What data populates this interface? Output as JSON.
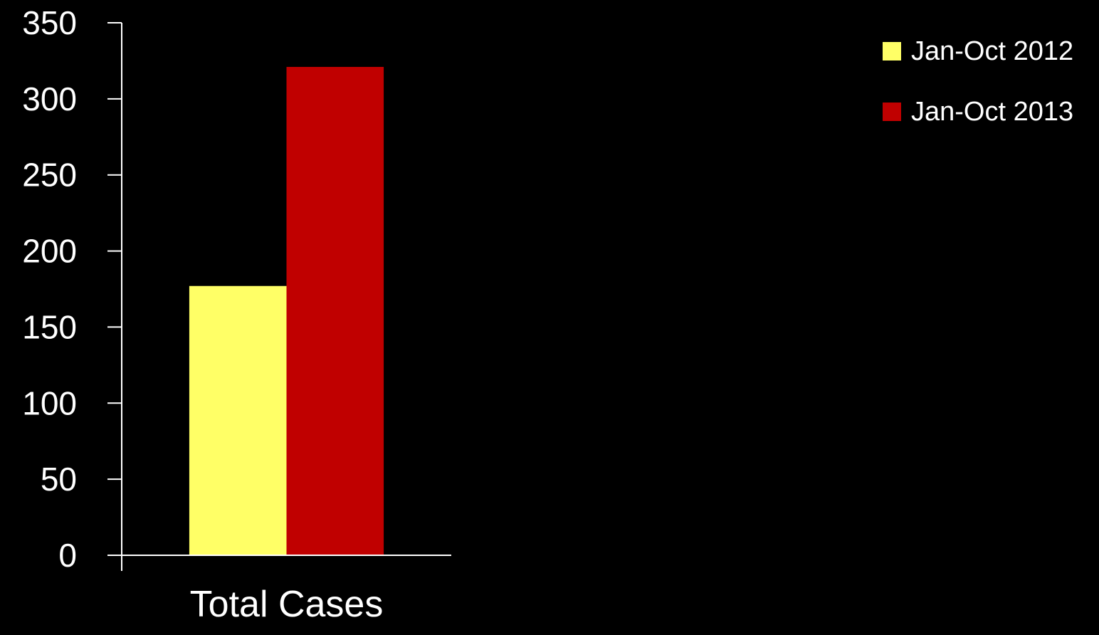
{
  "chart_data": {
    "type": "bar",
    "categories": [
      "Total Cases"
    ],
    "series": [
      {
        "name": "Jan-Oct 2012",
        "values": [
          177
        ],
        "color": "#FFFF66"
      },
      {
        "name": "Jan-Oct 2013",
        "values": [
          321
        ],
        "color": "#C00000"
      }
    ],
    "ylim": [
      0,
      350
    ],
    "yticks": [
      0,
      50,
      100,
      150,
      200,
      250,
      300,
      350
    ],
    "title": "",
    "xlabel": "",
    "ylabel": "",
    "grid": false,
    "legend_position": "top-right",
    "background": "#000000",
    "axis_color": "#ffffff",
    "text_color": "#ffffff"
  }
}
